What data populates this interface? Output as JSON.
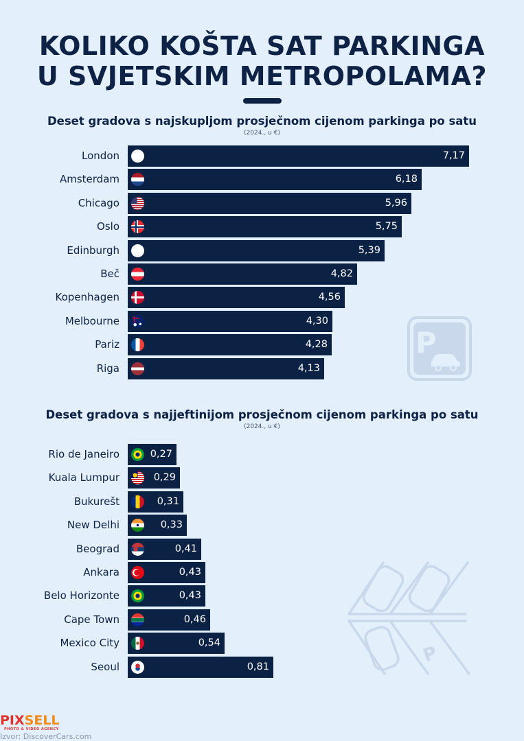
{
  "header": {
    "title_line1": "KOLIKO KOŠTA SAT PARKINGA",
    "title_line2": "U SVJETSKIM METROPOLAMA?"
  },
  "chart_data": [
    {
      "type": "bar",
      "orientation": "horizontal",
      "title": "Deset gradova s najskupljom prosječnom cijenom parkinga po satu",
      "subtitle": "(2024., u €)",
      "bar_color": "#0c2245",
      "categories": [
        "London",
        "Amsterdam",
        "Chicago",
        "Oslo",
        "Edinburgh",
        "Beč",
        "Kopenhagen",
        "Melbourne",
        "Pariz",
        "Riga"
      ],
      "flags": [
        "gb",
        "nl",
        "us",
        "no",
        "gb",
        "at",
        "dk",
        "au",
        "fr",
        "lv"
      ],
      "values": [
        7.17,
        6.18,
        5.96,
        5.75,
        5.39,
        4.82,
        4.56,
        4.3,
        4.28,
        4.13
      ],
      "labels": [
        "7,17",
        "6,18",
        "5,96",
        "5,75",
        "5,39",
        "4,82",
        "4,56",
        "4,30",
        "4,28",
        "4,13"
      ],
      "xlim": [
        0,
        7.17
      ]
    },
    {
      "type": "bar",
      "orientation": "horizontal",
      "title": "Deset gradova s najjeftinijom prosječnom cijenom parkinga po satu",
      "subtitle": "(2024., u €)",
      "bar_color": "#0c2245",
      "categories": [
        "Rio de Janeiro",
        "Kuala Lumpur",
        "Bukurešt",
        "New Delhi",
        "Beograd",
        "Ankara",
        "Belo Horizonte",
        "Cape Town",
        "Mexico City",
        "Seoul"
      ],
      "flags": [
        "br",
        "my",
        "ro",
        "in",
        "rs",
        "tr",
        "br",
        "za",
        "mx",
        "kr"
      ],
      "values": [
        0.27,
        0.29,
        0.31,
        0.33,
        0.41,
        0.43,
        0.43,
        0.46,
        0.54,
        0.81
      ],
      "labels": [
        "0,27",
        "0,29",
        "0,31",
        "0,33",
        "0,41",
        "0,43",
        "0,43",
        "0,46",
        "0,54",
        "0,81"
      ],
      "xlim": [
        0,
        0.81
      ]
    }
  ],
  "footer": {
    "logo_part1": "PIX",
    "logo_part2": "SELL",
    "logo_tagline": "PHOTO & VIDEO AGENCY",
    "source": "Izvor: DiscoverCars.com"
  },
  "decorations": {
    "icon1": "parking-sign-icon",
    "icon2": "parking-lot-icon"
  }
}
